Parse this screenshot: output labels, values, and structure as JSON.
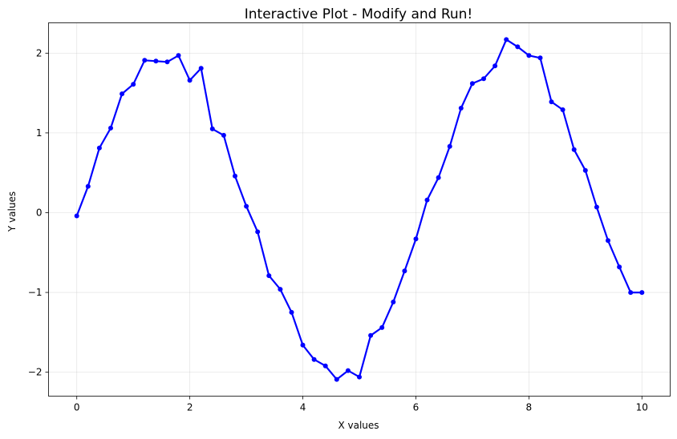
{
  "chart_data": {
    "type": "line",
    "title": "Interactive Plot - Modify and Run!",
    "xlabel": "X values",
    "ylabel": "Y values",
    "xlim": [
      -0.5,
      10.5
    ],
    "ylim": [
      -2.3,
      2.38
    ],
    "xticks": [
      0,
      2,
      4,
      6,
      8,
      10
    ],
    "xtick_labels": [
      "0",
      "2",
      "4",
      "6",
      "8",
      "10"
    ],
    "yticks": [
      -2,
      -1,
      0,
      1,
      2
    ],
    "ytick_labels": [
      "−2",
      "−1",
      "0",
      "1",
      "2"
    ],
    "grid": true,
    "series": [
      {
        "color": "#0000ff",
        "marker": "circle",
        "x": [
          0,
          0.2,
          0.4,
          0.6,
          0.8,
          1.0,
          1.2,
          1.4,
          1.6,
          1.8,
          2.0,
          2.2,
          2.4,
          2.6,
          2.8,
          3.0,
          3.2,
          3.4,
          3.6,
          3.8,
          4.0,
          4.2,
          4.4,
          4.6,
          4.8,
          5.0,
          5.2,
          5.4,
          5.6,
          5.8,
          6.0,
          6.2,
          6.4,
          6.6,
          6.8,
          7.0,
          7.2,
          7.4,
          7.6,
          7.8,
          8.0,
          8.2,
          8.4,
          8.6,
          8.8,
          9.0,
          9.2,
          9.4,
          9.6,
          9.8,
          10.0
        ],
        "y": [
          -0.04,
          0.33,
          0.81,
          1.06,
          1.49,
          1.61,
          1.91,
          1.9,
          1.89,
          1.97,
          1.66,
          1.81,
          1.05,
          0.97,
          0.46,
          0.08,
          -0.24,
          -0.79,
          -0.96,
          -1.25,
          -1.66,
          -1.84,
          -1.92,
          -2.09,
          -1.98,
          -2.06,
          -1.54,
          -1.44,
          -1.12,
          -0.73,
          -0.33,
          0.16,
          0.44,
          0.83,
          1.31,
          1.62,
          1.68,
          1.84,
          2.17,
          2.08,
          1.97,
          1.94,
          1.39,
          1.29,
          0.79,
          0.53,
          0.07,
          -0.35,
          -0.68,
          -1.0,
          -1.0
        ]
      }
    ]
  }
}
